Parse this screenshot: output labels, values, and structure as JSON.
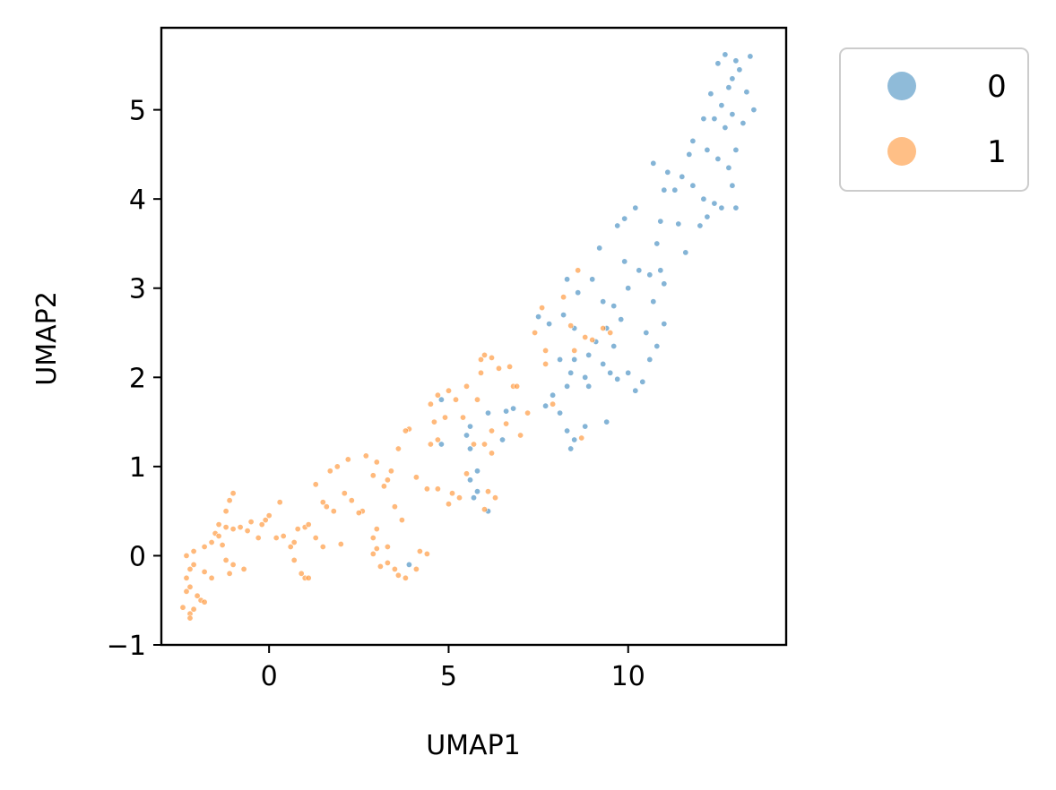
{
  "chart_data": {
    "type": "scatter",
    "title": "",
    "xlabel": "UMAP1",
    "ylabel": "UMAP2",
    "xlim": [
      -3.0,
      14.4
    ],
    "ylim": [
      -1.0,
      5.92
    ],
    "xticks": [
      0,
      5,
      10
    ],
    "yticks": [
      -1,
      0,
      1,
      2,
      3,
      4,
      5
    ],
    "xtick_labels": [
      "0",
      "5",
      "10"
    ],
    "ytick_labels": [
      "−1",
      "0",
      "1",
      "2",
      "3",
      "4",
      "5"
    ],
    "grid": false,
    "legend": {
      "placement": "outside-upper-right",
      "entries": [
        {
          "label": "0",
          "color": "#1f77b4"
        },
        {
          "label": "1",
          "color": "#ff7f0e"
        }
      ]
    },
    "series": [
      {
        "name": "0",
        "color": "#1f77b4",
        "points": [
          [
            13.4,
            5.6
          ],
          [
            12.7,
            5.62
          ],
          [
            13.0,
            5.55
          ],
          [
            12.5,
            5.52
          ],
          [
            13.1,
            5.45
          ],
          [
            12.9,
            5.35
          ],
          [
            13.3,
            5.2
          ],
          [
            12.8,
            5.25
          ],
          [
            12.3,
            5.18
          ],
          [
            13.5,
            5.0
          ],
          [
            12.6,
            5.05
          ],
          [
            12.4,
            4.9
          ],
          [
            12.9,
            4.95
          ],
          [
            12.1,
            4.9
          ],
          [
            13.2,
            4.85
          ],
          [
            12.7,
            4.8
          ],
          [
            11.8,
            4.65
          ],
          [
            12.2,
            4.55
          ],
          [
            11.7,
            4.5
          ],
          [
            13.0,
            4.55
          ],
          [
            12.5,
            4.45
          ],
          [
            11.1,
            4.3
          ],
          [
            11.5,
            4.25
          ],
          [
            12.8,
            4.35
          ],
          [
            10.7,
            4.4
          ],
          [
            11.8,
            4.15
          ],
          [
            11.3,
            4.1
          ],
          [
            12.1,
            4.0
          ],
          [
            12.9,
            4.15
          ],
          [
            11.0,
            4.1
          ],
          [
            12.4,
            3.95
          ],
          [
            13.0,
            3.9
          ],
          [
            12.6,
            3.9
          ],
          [
            12.2,
            3.8
          ],
          [
            10.9,
            3.75
          ],
          [
            11.4,
            3.72
          ],
          [
            12.0,
            3.7
          ],
          [
            10.2,
            3.9
          ],
          [
            9.9,
            3.78
          ],
          [
            9.7,
            3.7
          ],
          [
            10.8,
            3.5
          ],
          [
            11.6,
            3.4
          ],
          [
            9.2,
            3.45
          ],
          [
            10.3,
            3.2
          ],
          [
            10.6,
            3.15
          ],
          [
            10.9,
            3.2
          ],
          [
            11.0,
            3.05
          ],
          [
            9.9,
            3.3
          ],
          [
            9.0,
            3.1
          ],
          [
            8.3,
            3.1
          ],
          [
            8.6,
            2.95
          ],
          [
            10.0,
            3.0
          ],
          [
            9.3,
            2.85
          ],
          [
            9.6,
            2.8
          ],
          [
            10.7,
            2.85
          ],
          [
            9.8,
            2.65
          ],
          [
            10.5,
            2.5
          ],
          [
            11.0,
            2.6
          ],
          [
            9.4,
            2.55
          ],
          [
            8.2,
            2.7
          ],
          [
            8.5,
            2.55
          ],
          [
            7.5,
            2.68
          ],
          [
            7.8,
            2.6
          ],
          [
            9.1,
            2.4
          ],
          [
            9.6,
            2.35
          ],
          [
            10.8,
            2.35
          ],
          [
            8.9,
            2.25
          ],
          [
            8.1,
            2.2
          ],
          [
            8.5,
            2.2
          ],
          [
            9.3,
            2.15
          ],
          [
            10.6,
            2.2
          ],
          [
            9.5,
            2.05
          ],
          [
            10.0,
            2.05
          ],
          [
            8.4,
            2.05
          ],
          [
            8.8,
            2.0
          ],
          [
            9.7,
            1.98
          ],
          [
            10.4,
            1.95
          ],
          [
            8.3,
            1.9
          ],
          [
            8.9,
            1.9
          ],
          [
            7.9,
            1.8
          ],
          [
            10.2,
            1.85
          ],
          [
            7.7,
            1.68
          ],
          [
            8.1,
            1.6
          ],
          [
            9.4,
            1.5
          ],
          [
            8.8,
            1.45
          ],
          [
            8.3,
            1.4
          ],
          [
            8.5,
            1.3
          ],
          [
            8.4,
            1.2
          ],
          [
            6.8,
            1.65
          ],
          [
            6.6,
            1.62
          ],
          [
            6.1,
            1.6
          ],
          [
            5.6,
            1.45
          ],
          [
            5.5,
            1.35
          ],
          [
            6.5,
            1.3
          ],
          [
            5.6,
            1.2
          ],
          [
            4.8,
            1.25
          ],
          [
            4.8,
            1.75
          ],
          [
            5.8,
            0.95
          ],
          [
            5.6,
            0.85
          ],
          [
            5.8,
            0.72
          ],
          [
            5.7,
            0.65
          ],
          [
            6.1,
            0.5
          ],
          [
            3.9,
            -0.1
          ]
        ]
      },
      {
        "name": "1",
        "color": "#ff7f0e",
        "points": [
          [
            8.6,
            3.2
          ],
          [
            8.2,
            2.9
          ],
          [
            7.6,
            2.78
          ],
          [
            8.4,
            2.58
          ],
          [
            7.4,
            2.5
          ],
          [
            7.7,
            2.3
          ],
          [
            6.0,
            2.25
          ],
          [
            6.2,
            2.22
          ],
          [
            5.9,
            2.2
          ],
          [
            6.4,
            2.1
          ],
          [
            6.7,
            2.12
          ],
          [
            7.7,
            2.15
          ],
          [
            8.8,
            2.45
          ],
          [
            9.0,
            2.42
          ],
          [
            8.5,
            2.3
          ],
          [
            9.5,
            2.5
          ],
          [
            9.3,
            2.55
          ],
          [
            5.9,
            2.05
          ],
          [
            5.5,
            1.9
          ],
          [
            5.0,
            1.85
          ],
          [
            4.7,
            1.8
          ],
          [
            6.8,
            1.9
          ],
          [
            6.9,
            1.9
          ],
          [
            5.2,
            1.75
          ],
          [
            4.5,
            1.7
          ],
          [
            5.8,
            1.75
          ],
          [
            7.2,
            1.6
          ],
          [
            7.9,
            1.7
          ],
          [
            4.9,
            1.55
          ],
          [
            4.6,
            1.5
          ],
          [
            5.4,
            1.55
          ],
          [
            6.6,
            1.48
          ],
          [
            6.2,
            1.4
          ],
          [
            7.0,
            1.35
          ],
          [
            8.7,
            1.32
          ],
          [
            3.9,
            1.42
          ],
          [
            3.8,
            1.4
          ],
          [
            4.7,
            1.3
          ],
          [
            5.7,
            1.25
          ],
          [
            4.5,
            1.25
          ],
          [
            6.0,
            1.25
          ],
          [
            3.6,
            1.2
          ],
          [
            6.2,
            1.15
          ],
          [
            2.7,
            1.12
          ],
          [
            2.2,
            1.08
          ],
          [
            3.0,
            1.05
          ],
          [
            1.9,
            1.0
          ],
          [
            1.7,
            0.95
          ],
          [
            3.4,
            0.95
          ],
          [
            2.9,
            0.9
          ],
          [
            4.1,
            0.88
          ],
          [
            5.5,
            0.92
          ],
          [
            3.3,
            0.85
          ],
          [
            1.3,
            0.8
          ],
          [
            3.2,
            0.78
          ],
          [
            4.4,
            0.75
          ],
          [
            4.7,
            0.75
          ],
          [
            2.1,
            0.7
          ],
          [
            5.1,
            0.7
          ],
          [
            5.3,
            0.65
          ],
          [
            6.1,
            0.72
          ],
          [
            6.3,
            0.65
          ],
          [
            2.3,
            0.62
          ],
          [
            1.5,
            0.6
          ],
          [
            1.6,
            0.55
          ],
          [
            2.6,
            0.5
          ],
          [
            1.8,
            0.5
          ],
          [
            3.5,
            0.55
          ],
          [
            2.5,
            0.48
          ],
          [
            5.0,
            0.58
          ],
          [
            6.0,
            0.52
          ],
          [
            3.7,
            0.4
          ],
          [
            3.0,
            0.3
          ],
          [
            0.3,
            0.6
          ],
          [
            1.0,
            0.32
          ],
          [
            0.8,
            0.3
          ],
          [
            1.1,
            0.35
          ],
          [
            -0.1,
            0.4
          ],
          [
            0.0,
            0.45
          ],
          [
            -1.0,
            0.7
          ],
          [
            -1.1,
            0.62
          ],
          [
            -1.2,
            0.5
          ],
          [
            -1.4,
            0.35
          ],
          [
            -1.2,
            0.32
          ],
          [
            -1.0,
            0.3
          ],
          [
            -0.8,
            0.32
          ],
          [
            -0.5,
            0.38
          ],
          [
            -0.2,
            0.35
          ],
          [
            -1.5,
            0.25
          ],
          [
            -1.4,
            0.22
          ],
          [
            -1.6,
            0.15
          ],
          [
            -1.3,
            0.12
          ],
          [
            -1.8,
            0.1
          ],
          [
            -0.6,
            0.28
          ],
          [
            -0.3,
            0.2
          ],
          [
            0.2,
            0.2
          ],
          [
            0.4,
            0.22
          ],
          [
            0.7,
            0.15
          ],
          [
            1.3,
            0.2
          ],
          [
            2.9,
            0.2
          ],
          [
            1.5,
            0.1
          ],
          [
            2.0,
            0.13
          ],
          [
            0.6,
            0.1
          ],
          [
            3.0,
            0.08
          ],
          [
            2.9,
            0.02
          ],
          [
            3.3,
            0.1
          ],
          [
            4.2,
            0.05
          ],
          [
            4.4,
            0.02
          ],
          [
            0.7,
            -0.05
          ],
          [
            -2.1,
            0.05
          ],
          [
            -2.3,
            0.0
          ],
          [
            -2.1,
            -0.1
          ],
          [
            -2.2,
            -0.15
          ],
          [
            -1.2,
            -0.05
          ],
          [
            -1.8,
            -0.18
          ],
          [
            -1.0,
            -0.1
          ],
          [
            -0.7,
            -0.15
          ],
          [
            -1.1,
            -0.2
          ],
          [
            -1.6,
            -0.25
          ],
          [
            3.3,
            -0.08
          ],
          [
            3.1,
            -0.12
          ],
          [
            3.5,
            -0.15
          ],
          [
            3.6,
            -0.22
          ],
          [
            3.8,
            -0.25
          ],
          [
            4.1,
            -0.15
          ],
          [
            0.9,
            -0.2
          ],
          [
            1.0,
            -0.25
          ],
          [
            1.1,
            -0.25
          ],
          [
            -2.2,
            -0.35
          ],
          [
            -2.3,
            -0.4
          ],
          [
            -2.0,
            -0.45
          ],
          [
            -1.9,
            -0.5
          ],
          [
            -2.4,
            -0.58
          ],
          [
            -2.1,
            -0.6
          ],
          [
            -2.2,
            -0.65
          ],
          [
            -2.2,
            -0.7
          ],
          [
            -1.8,
            -0.52
          ],
          [
            -2.3,
            -0.25
          ]
        ]
      }
    ]
  }
}
